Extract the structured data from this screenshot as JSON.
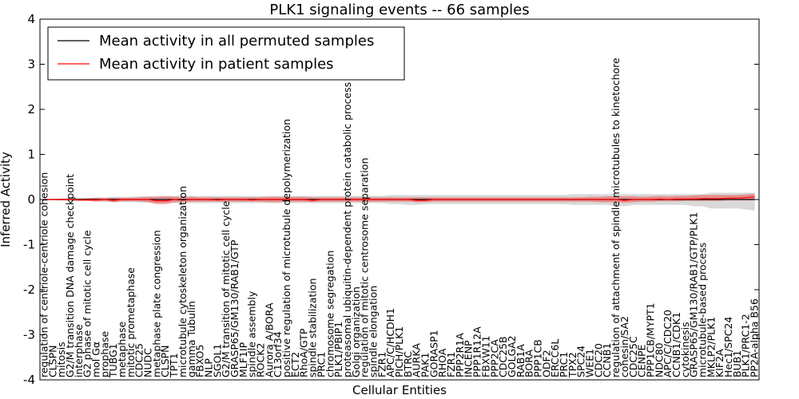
{
  "chart_data": {
    "type": "line",
    "title": "PLK1 signaling events -- 66 samples",
    "xlabel": "Cellular Entities",
    "ylabel": "Inferred Activity",
    "ylim": [
      -4,
      4
    ],
    "yticks": [
      -4,
      -3,
      -2,
      -1,
      0,
      1,
      2,
      3,
      4
    ],
    "legend_position": "top-left",
    "categories": [
      "regulation of centriole-centriole cohesion",
      "CLSPN",
      "mitosis",
      "G2/M transition DNA damage checkpoint",
      "interphase",
      "G2 phase of mitotic cell cycle",
      "mol Gα",
      "prophase",
      "TUBG1",
      "metaphase",
      "mitotic prometaphase",
      "CDC25",
      "NUDC",
      "metaphase plate congression",
      "CLSPN",
      "TPT1",
      "microtubule cytoskeleton organization",
      "gamma Tubulin",
      "FBXO5",
      "NLP",
      "SGOL1",
      "G2/M transition of mitotic cell cycle",
      "GRASP65/GM130/RAB1/GTP",
      "MLF1IP",
      "spindle assembly",
      "ROCK2",
      "Aurora A/BORA",
      "C13orf34",
      "positive regulation of microtubule depolymerization",
      "ECT2",
      "RhoA/GTP",
      "spindle stabilization",
      "PRC1",
      "chromosome segregation",
      "PLK1/PBIP1",
      "proteasomal ubiquitin-dependent protein catabolic process",
      "Golgi organization",
      "regulation of mitotic centrosome separation",
      "spindle elongation",
      "FZR1",
      "APC/C/HCDH1",
      "PICH/PLK1",
      "BTRC",
      "AURKA",
      "PAK1",
      "GORASP1",
      "RHOA",
      "FZR1",
      "PPP2R1A",
      "INCENP",
      "PPP1R12A",
      "FBXW11",
      "PPP2CA",
      "CDC25B",
      "GOLGA2",
      "RAB1A",
      "BORA",
      "PPP1CB",
      "ODF2",
      "ERCC6L",
      "PRC1",
      "TPX2",
      "SPC24",
      "WEE1",
      "CDC20",
      "CCNB1",
      "regulation of attachment of spindle microtubules to kinetochore",
      "cohesin/SA2",
      "CDC25C",
      "CENPE",
      "PPP1CB/MYPT1",
      "NDC80",
      "APC/C/CDC20",
      "CCNB1/CDK1",
      "cytokinesis",
      "GRASP65/GM130/RAB1/GTP/PLK1",
      "microtubule-based process",
      "MKLP2/PLK1",
      "KIF2A",
      "Hec1/SPC24",
      "BUB1",
      "PLK1/PRC1-2",
      "PP2A-alpha B56"
    ],
    "series": [
      {
        "name": "Mean activity in all permuted samples",
        "color": "#000000",
        "values": [
          0,
          0,
          0,
          0,
          0,
          0,
          0,
          0,
          0,
          0,
          0,
          0,
          0,
          0,
          0,
          0,
          0,
          0,
          0,
          0,
          0,
          0,
          0,
          0,
          0,
          0,
          0,
          0,
          0,
          0,
          0,
          0,
          0,
          0,
          0,
          0,
          0,
          0,
          0,
          0,
          0,
          0,
          0,
          0,
          0,
          0,
          0,
          0,
          0,
          0,
          0,
          0,
          0,
          0,
          0,
          0,
          0,
          0,
          0,
          0,
          0,
          0,
          0,
          0,
          0,
          0,
          0,
          0,
          0,
          0,
          0,
          0,
          0,
          0,
          0,
          0,
          0,
          0,
          0,
          0,
          0,
          0,
          0
        ],
        "band_low": [
          -0.01,
          -0.02,
          -0.02,
          -0.03,
          -0.03,
          -0.03,
          -0.04,
          -0.05,
          -0.06,
          -0.06,
          -0.06,
          -0.07,
          -0.07,
          -0.08,
          -0.08,
          -0.08,
          -0.08,
          -0.08,
          -0.08,
          -0.08,
          -0.08,
          -0.08,
          -0.08,
          -0.08,
          -0.08,
          -0.08,
          -0.08,
          -0.08,
          -0.08,
          -0.08,
          -0.08,
          -0.08,
          -0.08,
          -0.08,
          -0.08,
          -0.08,
          -0.08,
          -0.08,
          -0.08,
          -0.08,
          -0.1,
          -0.1,
          -0.12,
          -0.12,
          -0.1,
          -0.1,
          -0.1,
          -0.1,
          -0.1,
          -0.1,
          -0.1,
          -0.1,
          -0.1,
          -0.1,
          -0.1,
          -0.1,
          -0.1,
          -0.1,
          -0.1,
          -0.1,
          -0.1,
          -0.12,
          -0.12,
          -0.12,
          -0.12,
          -0.12,
          -0.15,
          -0.15,
          -0.12,
          -0.12,
          -0.12,
          -0.12,
          -0.12,
          -0.12,
          -0.12,
          -0.15,
          -0.15,
          -0.2,
          -0.2,
          -0.2,
          -0.2,
          -0.22,
          -0.25
        ],
        "band_high": [
          0.01,
          0.02,
          0.02,
          0.03,
          0.03,
          0.03,
          0.04,
          0.05,
          0.06,
          0.06,
          0.06,
          0.07,
          0.07,
          0.08,
          0.08,
          0.08,
          0.08,
          0.08,
          0.08,
          0.08,
          0.08,
          0.08,
          0.08,
          0.08,
          0.08,
          0.08,
          0.08,
          0.08,
          0.08,
          0.08,
          0.08,
          0.08,
          0.08,
          0.08,
          0.08,
          0.08,
          0.08,
          0.08,
          0.08,
          0.08,
          0.1,
          0.1,
          0.1,
          0.1,
          0.1,
          0.1,
          0.1,
          0.1,
          0.1,
          0.1,
          0.1,
          0.1,
          0.1,
          0.1,
          0.1,
          0.1,
          0.1,
          0.1,
          0.1,
          0.1,
          0.1,
          0.12,
          0.12,
          0.12,
          0.12,
          0.12,
          0.12,
          0.12,
          0.12,
          0.12,
          0.12,
          0.12,
          0.12,
          0.12,
          0.12,
          0.12,
          0.12,
          0.15,
          0.15,
          0.15,
          0.15,
          0.15,
          0.15
        ]
      },
      {
        "name": "Mean activity in patient samples",
        "color": "#ff0000",
        "values": [
          0,
          0,
          0,
          0,
          -0.01,
          -0.01,
          -0.01,
          0,
          -0.02,
          0,
          0,
          0,
          0,
          -0.03,
          -0.03,
          0,
          -0.01,
          0,
          0,
          0,
          -0.01,
          0,
          0,
          0,
          -0.01,
          0,
          0,
          0,
          0,
          0,
          0,
          -0.02,
          0,
          0,
          0,
          0,
          0,
          0,
          0,
          0,
          0,
          0,
          0,
          -0.02,
          -0.02,
          0,
          0,
          0,
          0,
          0,
          0,
          0,
          0,
          0,
          0,
          0,
          0,
          0,
          0,
          0,
          0,
          0,
          0,
          0,
          0,
          0,
          0,
          -0.02,
          0,
          0,
          0,
          0.01,
          0,
          0.01,
          0.01,
          0.01,
          0.02,
          0.02,
          0.02,
          0.03,
          0.03,
          0.04,
          0.06
        ],
        "band_low": [
          -0.01,
          -0.01,
          -0.02,
          -0.02,
          -0.03,
          -0.03,
          -0.05,
          -0.03,
          -0.06,
          -0.04,
          -0.04,
          -0.04,
          -0.06,
          -0.1,
          -0.1,
          -0.06,
          -0.06,
          -0.05,
          -0.05,
          -0.05,
          -0.05,
          -0.05,
          -0.05,
          -0.05,
          -0.05,
          -0.05,
          -0.06,
          -0.06,
          -0.05,
          -0.05,
          -0.05,
          -0.06,
          -0.05,
          -0.05,
          -0.05,
          -0.05,
          -0.05,
          -0.05,
          -0.05,
          -0.05,
          -0.05,
          -0.05,
          -0.05,
          -0.06,
          -0.06,
          -0.05,
          -0.05,
          -0.05,
          -0.05,
          -0.05,
          -0.05,
          -0.05,
          -0.05,
          -0.05,
          -0.05,
          -0.05,
          -0.05,
          -0.05,
          -0.05,
          -0.05,
          -0.05,
          -0.05,
          -0.05,
          -0.05,
          -0.06,
          -0.06,
          -0.06,
          -0.07,
          -0.06,
          -0.05,
          -0.05,
          -0.04,
          -0.04,
          -0.04,
          -0.03,
          -0.03,
          -0.03,
          -0.03,
          -0.03,
          -0.02,
          -0.02,
          -0.02,
          -0.02
        ],
        "band_high": [
          0.01,
          0.01,
          0.02,
          0.02,
          0.02,
          0.03,
          0.04,
          0.03,
          0.04,
          0.04,
          0.04,
          0.05,
          0.06,
          0.06,
          0.07,
          0.06,
          0.06,
          0.06,
          0.05,
          0.05,
          0.05,
          0.05,
          0.05,
          0.05,
          0.05,
          0.05,
          0.06,
          0.06,
          0.06,
          0.06,
          0.06,
          0.05,
          0.05,
          0.05,
          0.05,
          0.05,
          0.05,
          0.05,
          0.05,
          0.05,
          0.05,
          0.05,
          0.05,
          0.05,
          0.05,
          0.05,
          0.05,
          0.05,
          0.05,
          0.05,
          0.05,
          0.05,
          0.05,
          0.05,
          0.05,
          0.05,
          0.05,
          0.05,
          0.05,
          0.05,
          0.05,
          0.05,
          0.05,
          0.06,
          0.06,
          0.07,
          0.07,
          0.07,
          0.07,
          0.06,
          0.07,
          0.08,
          0.07,
          0.08,
          0.08,
          0.09,
          0.1,
          0.1,
          0.1,
          0.1,
          0.1,
          0.11,
          0.13
        ]
      }
    ]
  }
}
